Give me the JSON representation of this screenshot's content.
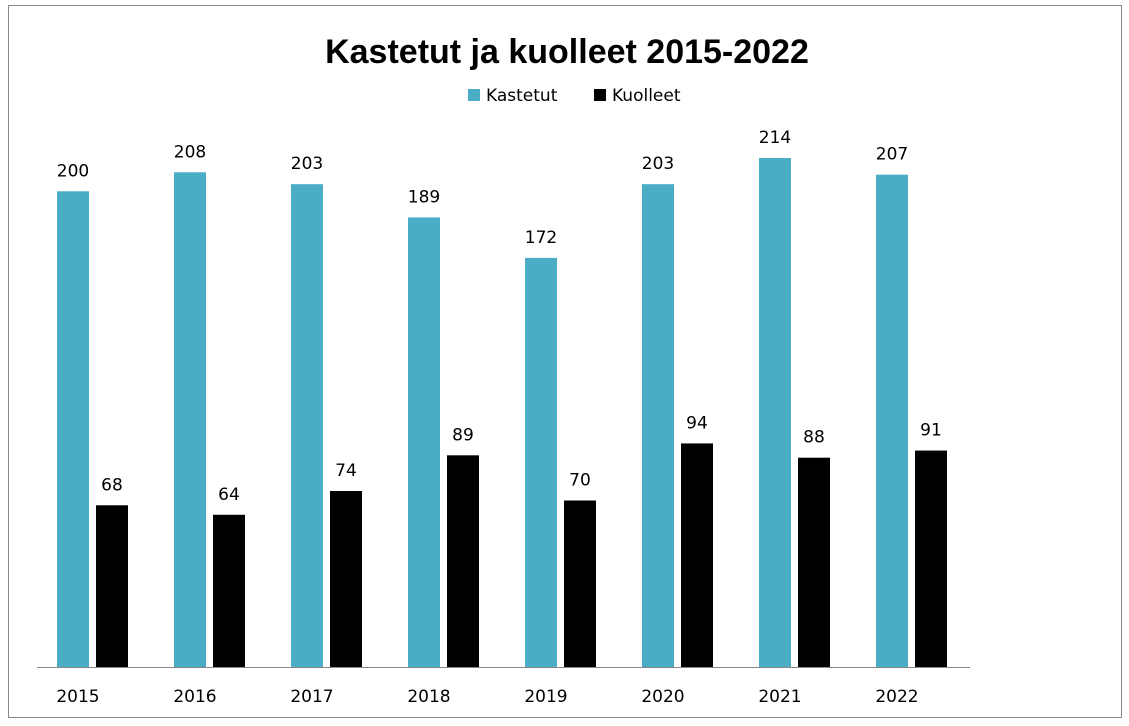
{
  "chart_data": {
    "type": "bar",
    "title": "Kastetut ja kuolleet 2015-2022",
    "categories": [
      "2015",
      "2016",
      "2017",
      "2018",
      "2019",
      "2020",
      "2021",
      "2022"
    ],
    "series": [
      {
        "name": "Kastetut",
        "color": "#4bacc6",
        "values": [
          200,
          208,
          203,
          189,
          172,
          203,
          214,
          207
        ]
      },
      {
        "name": "Kuolleet",
        "color": "#000000",
        "values": [
          68,
          64,
          74,
          89,
          70,
          94,
          88,
          91
        ]
      }
    ],
    "legend": "top"
  }
}
